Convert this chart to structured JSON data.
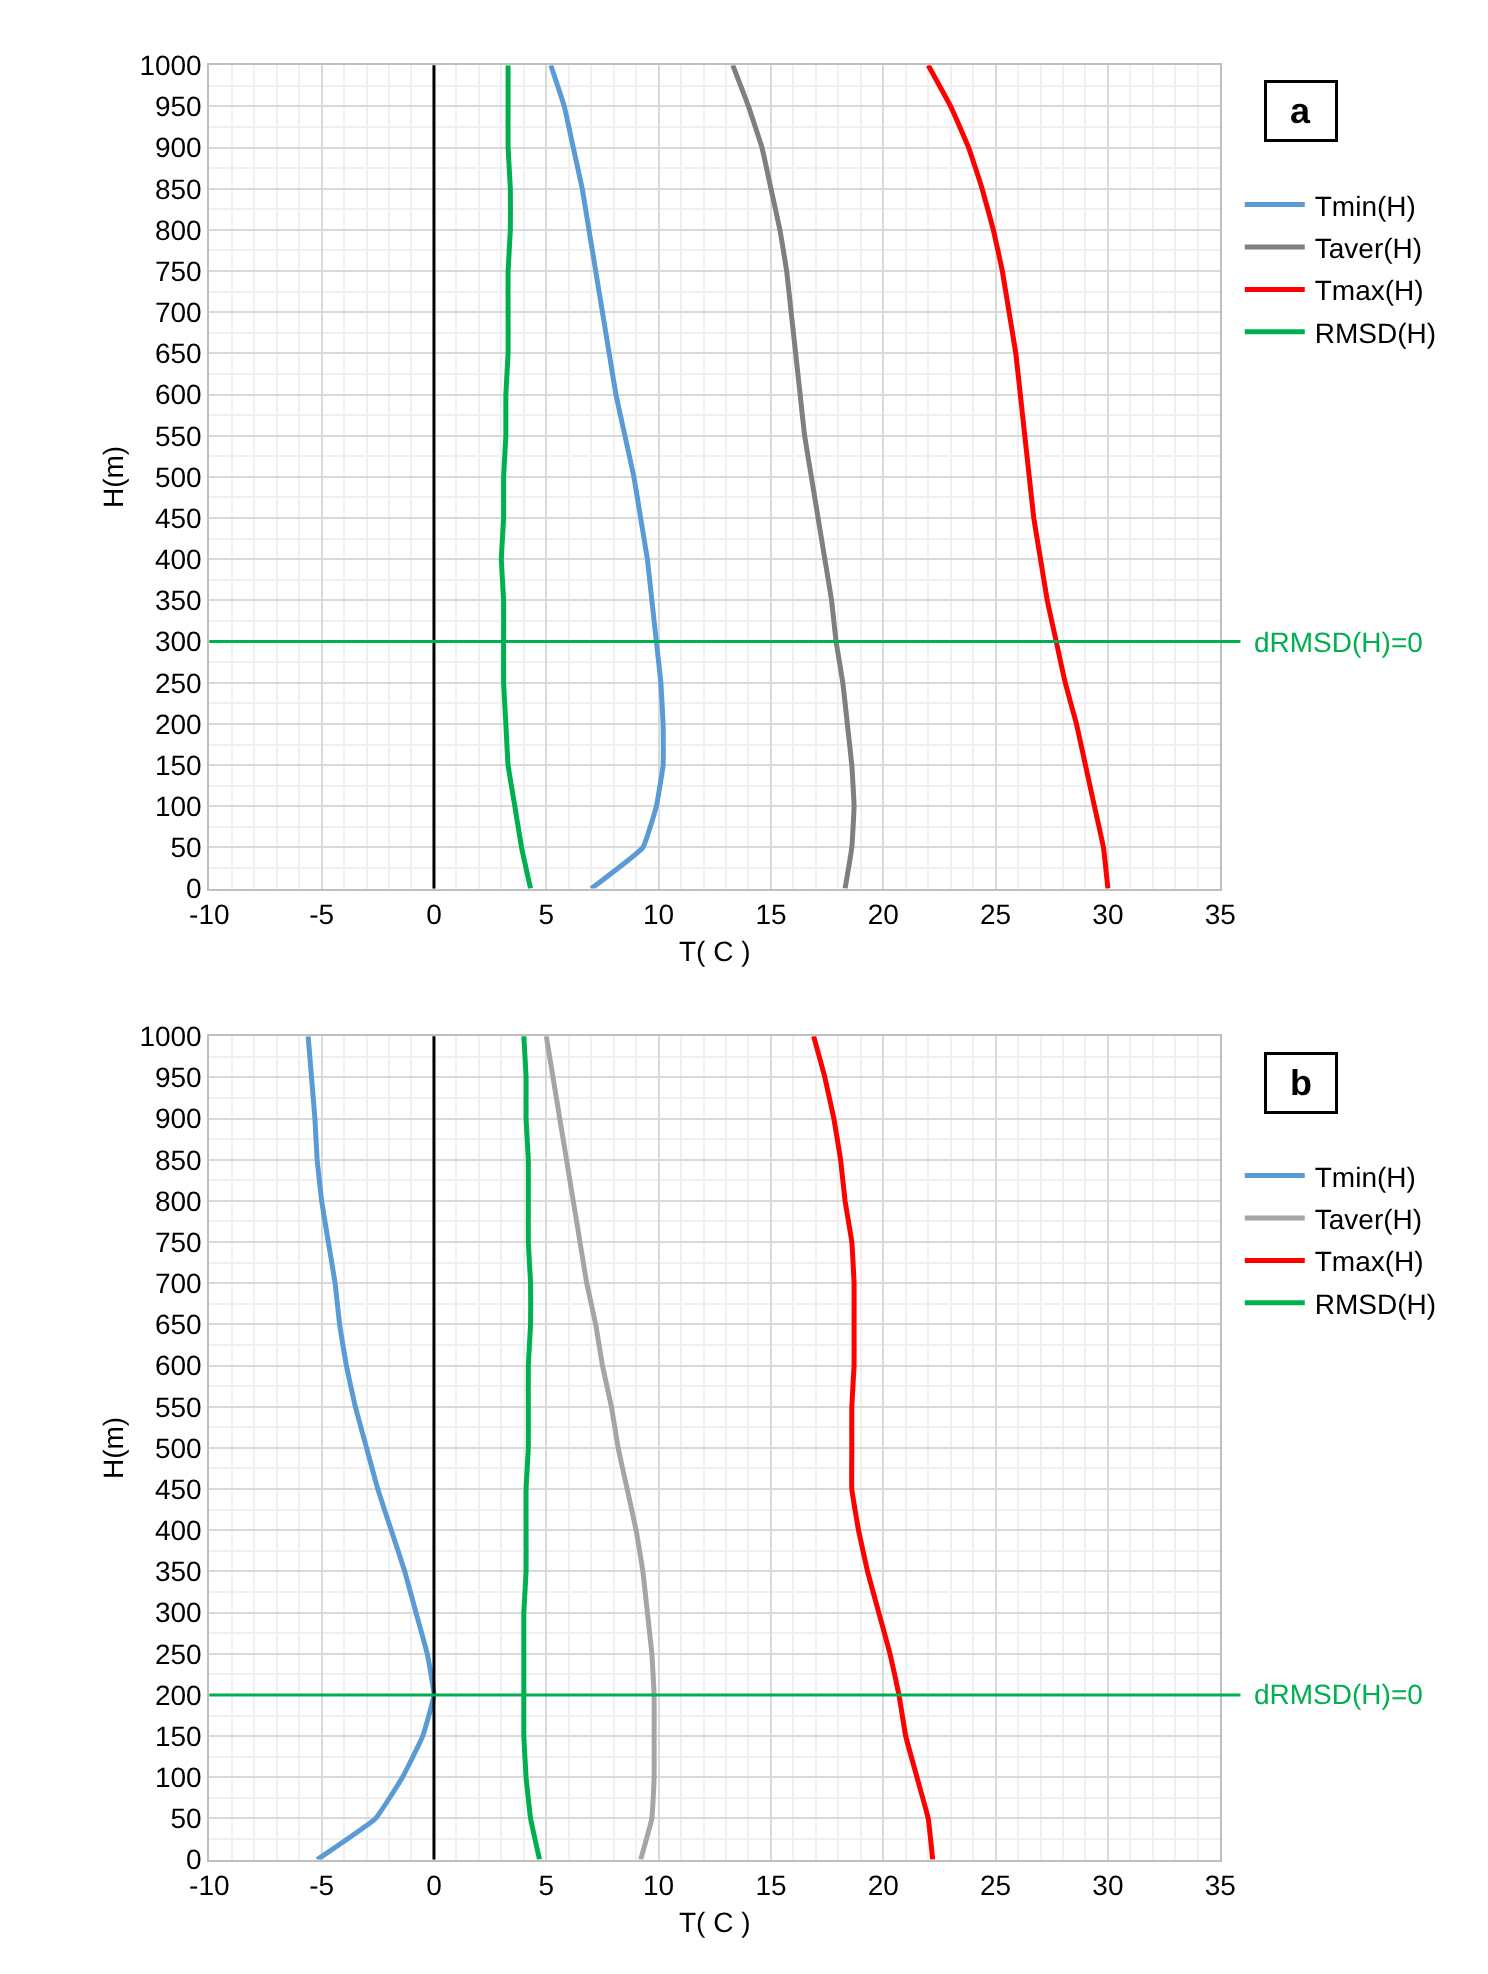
{
  "chart_data": [
    {
      "type": "line",
      "xlabel": "T( C )",
      "ylabel": "H(m)",
      "xlim": [
        -10,
        35
      ],
      "xticks": [
        -10,
        -5,
        0,
        5,
        10,
        15,
        20,
        25,
        30,
        35
      ],
      "ylim": [
        0,
        1000
      ],
      "yticks": [
        0,
        50,
        100,
        150,
        200,
        250,
        300,
        350,
        400,
        450,
        500,
        550,
        600,
        650,
        700,
        750,
        800,
        850,
        900,
        950,
        1000
      ],
      "grid": true,
      "legend": "right",
      "marker": "none",
      "line_style": "solid",
      "annotations": [
        "a",
        "dRMSD(H)=0"
      ],
      "ref_lines": [
        {
          "axis": "x",
          "value": 0,
          "color": "#000000"
        },
        {
          "axis": "y",
          "value": 300,
          "color": "#00b050"
        }
      ],
      "series": [
        {
          "name": "Tmin(H)",
          "color": "#5b9bd5",
          "x": [
            7.0,
            9.3,
            9.9,
            10.2,
            10.2,
            10.1,
            9.9,
            9.7,
            9.5,
            9.2,
            8.9,
            8.5,
            8.1,
            7.8,
            7.5,
            7.2,
            6.9,
            6.6,
            6.2,
            5.8,
            5.2
          ],
          "values": [
            0,
            50,
            100,
            150,
            200,
            250,
            300,
            350,
            400,
            450,
            500,
            550,
            600,
            650,
            700,
            750,
            800,
            850,
            900,
            950,
            1000
          ]
        },
        {
          "name": "Taver(H)",
          "color": "#7f7f7f",
          "x": [
            18.3,
            18.6,
            18.7,
            18.6,
            18.4,
            18.2,
            17.9,
            17.7,
            17.4,
            17.1,
            16.8,
            16.5,
            16.3,
            16.1,
            15.9,
            15.7,
            15.4,
            15.0,
            14.6,
            14.0,
            13.3
          ],
          "values": [
            0,
            50,
            100,
            150,
            200,
            250,
            300,
            350,
            400,
            450,
            500,
            550,
            600,
            650,
            700,
            750,
            800,
            850,
            900,
            950,
            1000
          ]
        },
        {
          "name": "Tmax(H)",
          "color": "#ff0000",
          "x": [
            30.0,
            29.8,
            29.4,
            29.0,
            28.6,
            28.1,
            27.7,
            27.3,
            27.0,
            26.7,
            26.5,
            26.3,
            26.1,
            25.9,
            25.6,
            25.3,
            24.9,
            24.4,
            23.8,
            23.0,
            22.0
          ],
          "values": [
            0,
            50,
            100,
            150,
            200,
            250,
            300,
            350,
            400,
            450,
            500,
            550,
            600,
            650,
            700,
            750,
            800,
            850,
            900,
            950,
            1000
          ]
        },
        {
          "name": "RMSD(H)",
          "color": "#00b050",
          "x": [
            4.3,
            3.9,
            3.6,
            3.3,
            3.2,
            3.1,
            3.1,
            3.1,
            3.0,
            3.1,
            3.1,
            3.2,
            3.2,
            3.3,
            3.3,
            3.3,
            3.4,
            3.4,
            3.3,
            3.3,
            3.3
          ],
          "values": [
            0,
            50,
            100,
            150,
            200,
            250,
            300,
            350,
            400,
            450,
            500,
            550,
            600,
            650,
            700,
            750,
            800,
            850,
            900,
            950,
            1000
          ]
        }
      ]
    },
    {
      "type": "line",
      "xlabel": "T( C )",
      "ylabel": "H(m)",
      "xlim": [
        -10,
        35
      ],
      "xticks": [
        -10,
        -5,
        0,
        5,
        10,
        15,
        20,
        25,
        30,
        35
      ],
      "ylim": [
        0,
        1000
      ],
      "yticks": [
        0,
        50,
        100,
        150,
        200,
        250,
        300,
        350,
        400,
        450,
        500,
        550,
        600,
        650,
        700,
        750,
        800,
        850,
        900,
        950,
        1000
      ],
      "grid": true,
      "legend": "right",
      "marker": "none",
      "line_style": "solid",
      "annotations": [
        "b",
        "dRMSD(H)=0"
      ],
      "ref_lines": [
        {
          "axis": "x",
          "value": 0,
          "color": "#000000"
        },
        {
          "axis": "y",
          "value": 200,
          "color": "#00b050"
        }
      ],
      "series": [
        {
          "name": "Tmin(H)",
          "color": "#5b9bd5",
          "x": [
            -5.2,
            -2.6,
            -1.4,
            -0.5,
            0.0,
            -0.3,
            -0.8,
            -1.3,
            -1.9,
            -2.5,
            -3.0,
            -3.5,
            -3.9,
            -4.2,
            -4.4,
            -4.7,
            -5.0,
            -5.2,
            -5.3,
            -5.45,
            -5.6
          ],
          "values": [
            0,
            50,
            100,
            150,
            200,
            250,
            300,
            350,
            400,
            450,
            500,
            550,
            600,
            650,
            700,
            750,
            800,
            850,
            900,
            950,
            1000
          ]
        },
        {
          "name": "Taver(H)",
          "color": "#a5a5a5",
          "x": [
            9.2,
            9.7,
            9.8,
            9.8,
            9.8,
            9.7,
            9.5,
            9.3,
            9.0,
            8.6,
            8.2,
            7.9,
            7.5,
            7.2,
            6.8,
            6.5,
            6.2,
            5.9,
            5.6,
            5.3,
            5.0
          ],
          "values": [
            0,
            50,
            100,
            150,
            200,
            250,
            300,
            350,
            400,
            450,
            500,
            550,
            600,
            650,
            700,
            750,
            800,
            850,
            900,
            950,
            1000
          ]
        },
        {
          "name": "Tmax(H)",
          "color": "#ff0000",
          "x": [
            22.2,
            22.0,
            21.5,
            21.0,
            20.7,
            20.3,
            19.8,
            19.3,
            18.9,
            18.6,
            18.6,
            18.6,
            18.7,
            18.7,
            18.7,
            18.6,
            18.3,
            18.1,
            17.8,
            17.4,
            16.9
          ],
          "values": [
            0,
            50,
            100,
            150,
            200,
            250,
            300,
            350,
            400,
            450,
            500,
            550,
            600,
            650,
            700,
            750,
            800,
            850,
            900,
            950,
            1000
          ]
        },
        {
          "name": "RMSD(H)",
          "color": "#00b050",
          "x": [
            4.7,
            4.3,
            4.1,
            4.0,
            4.0,
            4.0,
            4.0,
            4.1,
            4.1,
            4.1,
            4.2,
            4.2,
            4.2,
            4.3,
            4.3,
            4.2,
            4.2,
            4.2,
            4.1,
            4.1,
            4.0
          ],
          "values": [
            0,
            50,
            100,
            150,
            200,
            250,
            300,
            350,
            400,
            450,
            500,
            550,
            600,
            650,
            700,
            750,
            800,
            850,
            900,
            950,
            1000
          ]
        }
      ]
    }
  ]
}
